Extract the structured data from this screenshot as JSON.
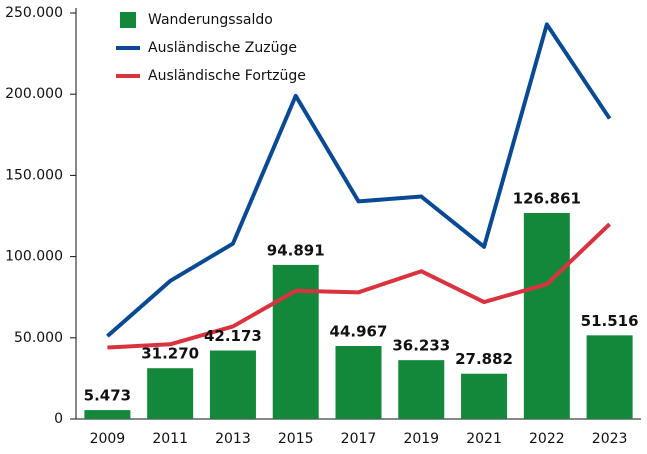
{
  "chart_data": {
    "type": "bar",
    "categories": [
      "2009",
      "2011",
      "2013",
      "2015",
      "2017",
      "2019",
      "2021",
      "2022",
      "2023"
    ],
    "series": [
      {
        "name": "Wanderungssaldo",
        "type": "bar",
        "color": "#13883a",
        "values": [
          5473,
          31270,
          42173,
          94891,
          44967,
          36233,
          27882,
          126861,
          51516
        ],
        "value_labels": [
          "5.473",
          "31.270",
          "42.173",
          "94.891",
          "44.967",
          "36.233",
          "27.882",
          "126.861",
          "51.516"
        ]
      },
      {
        "name": "Ausländische Zuzüge",
        "type": "line",
        "color": "#0a4a94",
        "values": [
          51000,
          85000,
          108000,
          199000,
          134000,
          137000,
          106000,
          243000,
          185000
        ]
      },
      {
        "name": "Ausländische Fortzüge",
        "type": "line",
        "color": "#d9333f",
        "values": [
          44000,
          46000,
          57000,
          79000,
          78000,
          91000,
          72000,
          83000,
          120000
        ]
      }
    ],
    "ylim": [
      0,
      250000
    ],
    "yticks": [
      0,
      {
        "value": 50000,
        "label": "50.000"
      },
      {
        "value": 100000,
        "label": "100.000"
      },
      {
        "value": 150000,
        "label": "150.000"
      },
      {
        "value": 200000,
        "label": "200.000"
      },
      {
        "value": 250000,
        "label": "250.000"
      }
    ],
    "grid": false,
    "legend": "top-left"
  }
}
